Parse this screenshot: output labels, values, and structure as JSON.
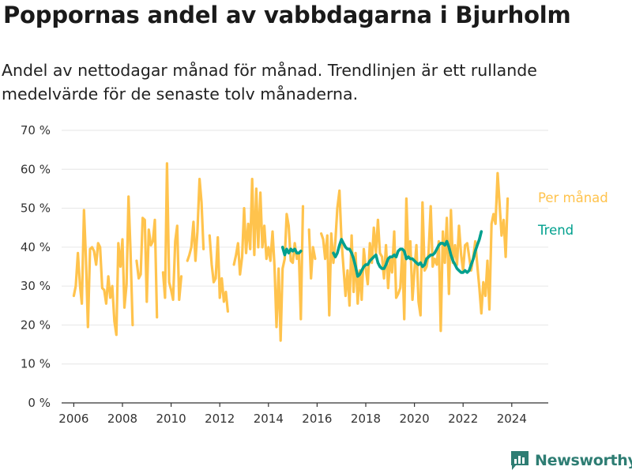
{
  "header": {
    "title": "Poppornas andel av vabbdagarna i Bjurholm",
    "subtitle": "Andel av nettodagar månad för månad. Trendlinjen är ett rullande medelvärde för de senaste tolv månaderna."
  },
  "brand": {
    "name": "Newsworthy",
    "icon": "newsworthy-logo-icon"
  },
  "colors": {
    "monthly": "#FFC34D",
    "trend": "#00A08E",
    "grid": "#e6e6e6",
    "axis": "#333333"
  },
  "chart_data": {
    "type": "line",
    "title": "Poppornas andel av vabbdagarna i Bjurholm",
    "xlabel": "",
    "ylabel": "",
    "xlim": [
      2005.5,
      2025.5
    ],
    "ylim": [
      0,
      70
    ],
    "x_ticks": [
      2006,
      2008,
      2010,
      2012,
      2014,
      2016,
      2018,
      2020,
      2022,
      2024
    ],
    "y_ticks": [
      0,
      10,
      20,
      30,
      40,
      50,
      60,
      70
    ],
    "y_tick_labels": [
      "0 %",
      "10 %",
      "20 %",
      "30 %",
      "40 %",
      "50 %",
      "60 %",
      "70 %"
    ],
    "grid": true,
    "legend": "inline-right",
    "series": [
      {
        "name": "Per månad",
        "points": [
          [
            2006.0,
            27.5
          ],
          [
            2006.08,
            30.0
          ],
          [
            2006.17,
            38.5
          ],
          [
            2006.25,
            30.5
          ],
          [
            2006.33,
            25.5
          ],
          [
            2006.42,
            49.5
          ],
          [
            2006.5,
            37.0
          ],
          [
            2006.58,
            19.5
          ],
          [
            2006.67,
            39.5
          ],
          [
            2006.75,
            40.0
          ],
          [
            2006.83,
            39.0
          ],
          [
            2006.92,
            35.5
          ],
          [
            2007.0,
            41.0
          ],
          [
            2007.08,
            40.0
          ],
          [
            2007.17,
            29.5
          ],
          [
            2007.25,
            29.0
          ],
          [
            2007.33,
            25.5
          ],
          [
            2007.42,
            32.5
          ],
          [
            2007.5,
            27.0
          ],
          [
            2007.58,
            30.0
          ],
          [
            2007.67,
            21.0
          ],
          [
            2007.75,
            17.5
          ],
          [
            2007.83,
            41.0
          ],
          [
            2007.92,
            35.0
          ],
          [
            2008.0,
            42.0
          ],
          [
            2008.08,
            24.5
          ],
          [
            2008.17,
            30.5
          ],
          [
            2008.25,
            53.0
          ],
          [
            2008.33,
            39.0
          ],
          [
            2008.42,
            20.0
          ],
          null,
          [
            2008.58,
            36.5
          ],
          [
            2008.67,
            32.0
          ],
          [
            2008.75,
            33.0
          ],
          [
            2008.83,
            47.5
          ],
          [
            2008.92,
            47.0
          ],
          [
            2009.0,
            26.0
          ],
          [
            2009.08,
            44.5
          ],
          [
            2009.17,
            40.5
          ],
          [
            2009.25,
            41.5
          ],
          [
            2009.33,
            47.0
          ],
          [
            2009.42,
            22.0
          ],
          null,
          [
            2009.67,
            33.5
          ],
          [
            2009.75,
            27.0
          ],
          [
            2009.83,
            61.5
          ],
          [
            2009.92,
            31.0
          ],
          [
            2010.0,
            29.0
          ],
          [
            2010.08,
            26.5
          ],
          [
            2010.17,
            41.5
          ],
          [
            2010.25,
            45.5
          ],
          [
            2010.33,
            26.5
          ],
          [
            2010.42,
            32.5
          ],
          null,
          [
            2010.67,
            36.5
          ],
          [
            2010.75,
            38.0
          ],
          [
            2010.83,
            40.0
          ],
          [
            2010.92,
            46.5
          ],
          [
            2011.0,
            36.5
          ],
          [
            2011.08,
            44.0
          ],
          [
            2011.17,
            57.5
          ],
          [
            2011.25,
            51.5
          ],
          [
            2011.33,
            39.5
          ],
          null,
          [
            2011.58,
            43.0
          ],
          [
            2011.67,
            35.5
          ],
          [
            2011.75,
            31.0
          ],
          [
            2011.83,
            32.0
          ],
          [
            2011.92,
            42.5
          ],
          [
            2012.0,
            27.0
          ],
          [
            2012.08,
            32.0
          ],
          [
            2012.17,
            26.0
          ],
          [
            2012.25,
            28.5
          ],
          [
            2012.33,
            23.5
          ],
          null,
          [
            2012.58,
            35.5
          ],
          [
            2012.67,
            38.0
          ],
          [
            2012.75,
            41.0
          ],
          [
            2012.83,
            33.0
          ],
          [
            2012.92,
            37.5
          ],
          [
            2013.0,
            50.0
          ],
          [
            2013.08,
            38.5
          ],
          [
            2013.17,
            46.0
          ],
          [
            2013.25,
            39.5
          ],
          [
            2013.33,
            57.5
          ],
          [
            2013.42,
            38.0
          ],
          [
            2013.5,
            55.0
          ],
          [
            2013.58,
            40.0
          ],
          [
            2013.67,
            54.0
          ],
          [
            2013.75,
            40.0
          ],
          [
            2013.83,
            45.5
          ],
          [
            2013.92,
            37.0
          ],
          [
            2014.0,
            40.0
          ],
          [
            2014.08,
            36.5
          ],
          [
            2014.17,
            44.0
          ],
          [
            2014.25,
            35.0
          ],
          [
            2014.33,
            19.5
          ],
          [
            2014.42,
            34.5
          ],
          [
            2014.5,
            16.0
          ],
          [
            2014.58,
            34.5
          ],
          [
            2014.67,
            37.0
          ],
          [
            2014.75,
            48.5
          ],
          [
            2014.83,
            45.5
          ],
          [
            2014.92,
            36.5
          ],
          [
            2015.0,
            36.0
          ],
          [
            2015.08,
            41.0
          ],
          [
            2015.17,
            37.0
          ],
          [
            2015.25,
            38.5
          ],
          [
            2015.33,
            21.5
          ],
          [
            2015.42,
            50.5
          ],
          null,
          [
            2015.67,
            44.5
          ],
          [
            2015.75,
            32.0
          ],
          [
            2015.83,
            40.0
          ],
          [
            2015.92,
            37.0
          ],
          null,
          [
            2016.17,
            43.5
          ],
          [
            2016.25,
            42.0
          ],
          [
            2016.33,
            37.0
          ],
          [
            2016.42,
            43.0
          ],
          [
            2016.5,
            22.5
          ],
          [
            2016.58,
            43.5
          ],
          [
            2016.67,
            36.0
          ],
          [
            2016.75,
            41.5
          ],
          [
            2016.83,
            50.0
          ],
          [
            2016.92,
            54.5
          ],
          [
            2017.0,
            42.0
          ],
          [
            2017.08,
            35.0
          ],
          [
            2017.17,
            27.5
          ],
          [
            2017.25,
            34.0
          ],
          [
            2017.33,
            25.0
          ],
          [
            2017.42,
            43.0
          ],
          [
            2017.5,
            28.5
          ],
          [
            2017.58,
            38.5
          ],
          [
            2017.67,
            25.5
          ],
          [
            2017.75,
            34.0
          ],
          [
            2017.83,
            26.5
          ],
          [
            2017.92,
            39.5
          ],
          [
            2018.0,
            34.5
          ],
          [
            2018.08,
            30.5
          ],
          [
            2018.17,
            41.0
          ],
          [
            2018.25,
            36.0
          ],
          [
            2018.33,
            45.0
          ],
          [
            2018.42,
            38.5
          ],
          [
            2018.5,
            47.0
          ],
          [
            2018.58,
            38.5
          ],
          [
            2018.67,
            37.5
          ],
          [
            2018.75,
            32.0
          ],
          [
            2018.83,
            40.5
          ],
          [
            2018.92,
            29.5
          ],
          [
            2019.0,
            37.0
          ],
          [
            2019.08,
            33.5
          ],
          [
            2019.17,
            44.0
          ],
          [
            2019.25,
            27.0
          ],
          [
            2019.33,
            28.0
          ],
          [
            2019.42,
            29.5
          ],
          [
            2019.5,
            39.0
          ],
          [
            2019.58,
            21.5
          ],
          [
            2019.67,
            52.5
          ],
          [
            2019.75,
            37.5
          ],
          [
            2019.83,
            41.5
          ],
          [
            2019.92,
            26.5
          ],
          [
            2020.0,
            34.0
          ],
          [
            2020.08,
            40.5
          ],
          [
            2020.17,
            26.0
          ],
          [
            2020.25,
            22.5
          ],
          [
            2020.33,
            51.5
          ],
          [
            2020.42,
            34.0
          ],
          [
            2020.5,
            35.0
          ],
          [
            2020.58,
            38.5
          ],
          [
            2020.67,
            50.5
          ],
          [
            2020.75,
            35.0
          ],
          [
            2020.83,
            37.0
          ],
          [
            2020.92,
            35.5
          ],
          [
            2021.0,
            41.5
          ],
          [
            2021.08,
            18.5
          ],
          [
            2021.17,
            44.0
          ],
          [
            2021.25,
            36.0
          ],
          [
            2021.33,
            47.5
          ],
          [
            2021.42,
            28.0
          ],
          [
            2021.5,
            49.5
          ],
          [
            2021.58,
            36.0
          ],
          [
            2021.67,
            40.5
          ],
          [
            2021.75,
            35.5
          ],
          [
            2021.83,
            45.5
          ],
          [
            2021.92,
            38.0
          ],
          [
            2022.0,
            34.0
          ],
          [
            2022.08,
            40.5
          ],
          [
            2022.17,
            41.0
          ],
          [
            2022.25,
            37.5
          ],
          [
            2022.33,
            34.0
          ],
          [
            2022.42,
            37.5
          ],
          [
            2022.5,
            41.5
          ],
          [
            2022.58,
            35.5
          ],
          [
            2022.67,
            29.5
          ],
          [
            2022.75,
            23.0
          ],
          [
            2022.83,
            31.0
          ],
          [
            2022.92,
            27.5
          ],
          [
            2023.0,
            36.5
          ],
          [
            2023.08,
            24.0
          ],
          [
            2023.17,
            46.0
          ],
          [
            2023.25,
            48.5
          ],
          [
            2023.33,
            46.0
          ],
          [
            2023.42,
            59.0
          ],
          [
            2023.5,
            51.0
          ],
          [
            2023.58,
            43.0
          ],
          [
            2023.67,
            47.0
          ],
          [
            2023.75,
            37.5
          ],
          [
            2023.83,
            52.5
          ]
        ]
      },
      {
        "name": "Trend",
        "points": [
          [
            2014.58,
            40.0
          ],
          [
            2014.67,
            38.0
          ],
          [
            2014.75,
            39.5
          ],
          [
            2014.83,
            38.5
          ],
          [
            2014.92,
            39.5
          ],
          [
            2015.0,
            39.0
          ],
          [
            2015.08,
            39.5
          ],
          [
            2015.17,
            38.5
          ],
          [
            2015.25,
            38.5
          ],
          [
            2015.33,
            39.0
          ],
          null,
          [
            2016.67,
            38.5
          ],
          [
            2016.75,
            37.5
          ],
          [
            2016.83,
            38.5
          ],
          [
            2016.92,
            40.5
          ],
          [
            2017.0,
            42.0
          ],
          [
            2017.08,
            41.0
          ],
          [
            2017.17,
            40.0
          ],
          [
            2017.25,
            39.5
          ],
          [
            2017.33,
            39.5
          ],
          [
            2017.42,
            38.5
          ],
          [
            2017.5,
            37.0
          ],
          [
            2017.58,
            35.0
          ],
          [
            2017.67,
            32.5
          ],
          [
            2017.75,
            33.0
          ],
          [
            2017.83,
            34.0
          ],
          [
            2017.92,
            35.0
          ],
          [
            2018.0,
            35.5
          ],
          [
            2018.08,
            35.5
          ],
          [
            2018.17,
            36.5
          ],
          [
            2018.25,
            37.0
          ],
          [
            2018.33,
            37.5
          ],
          [
            2018.42,
            38.0
          ],
          [
            2018.5,
            36.0
          ],
          [
            2018.58,
            35.0
          ],
          [
            2018.67,
            34.5
          ],
          [
            2018.75,
            34.5
          ],
          [
            2018.83,
            35.5
          ],
          [
            2018.92,
            37.0
          ],
          [
            2019.0,
            37.5
          ],
          [
            2019.08,
            37.5
          ],
          [
            2019.17,
            38.0
          ],
          [
            2019.25,
            37.5
          ],
          [
            2019.33,
            39.0
          ],
          [
            2019.42,
            39.5
          ],
          [
            2019.5,
            39.5
          ],
          [
            2019.58,
            39.0
          ],
          [
            2019.67,
            37.0
          ],
          [
            2019.75,
            37.5
          ],
          [
            2019.83,
            37.0
          ],
          [
            2019.92,
            37.0
          ],
          [
            2020.0,
            36.5
          ],
          [
            2020.08,
            36.0
          ],
          [
            2020.17,
            35.5
          ],
          [
            2020.25,
            36.0
          ],
          [
            2020.33,
            35.0
          ],
          [
            2020.42,
            35.5
          ],
          [
            2020.5,
            37.0
          ],
          [
            2020.58,
            37.5
          ],
          [
            2020.67,
            38.0
          ],
          [
            2020.75,
            38.0
          ],
          [
            2020.83,
            38.5
          ],
          [
            2020.92,
            39.5
          ],
          [
            2021.0,
            40.5
          ],
          [
            2021.08,
            41.0
          ],
          [
            2021.17,
            41.0
          ],
          [
            2021.25,
            40.5
          ],
          [
            2021.33,
            41.5
          ],
          [
            2021.42,
            40.0
          ],
          [
            2021.5,
            38.0
          ],
          [
            2021.58,
            36.5
          ],
          [
            2021.67,
            35.5
          ],
          [
            2021.75,
            34.5
          ],
          [
            2021.83,
            34.0
          ],
          [
            2021.92,
            33.5
          ],
          [
            2022.0,
            33.5
          ],
          [
            2022.08,
            34.0
          ],
          [
            2022.17,
            33.5
          ],
          [
            2022.25,
            34.0
          ],
          [
            2022.33,
            35.5
          ],
          [
            2022.42,
            37.0
          ],
          [
            2022.5,
            39.0
          ],
          [
            2022.58,
            40.5
          ],
          [
            2022.67,
            42.0
          ],
          [
            2022.75,
            44.0
          ]
        ]
      }
    ]
  }
}
